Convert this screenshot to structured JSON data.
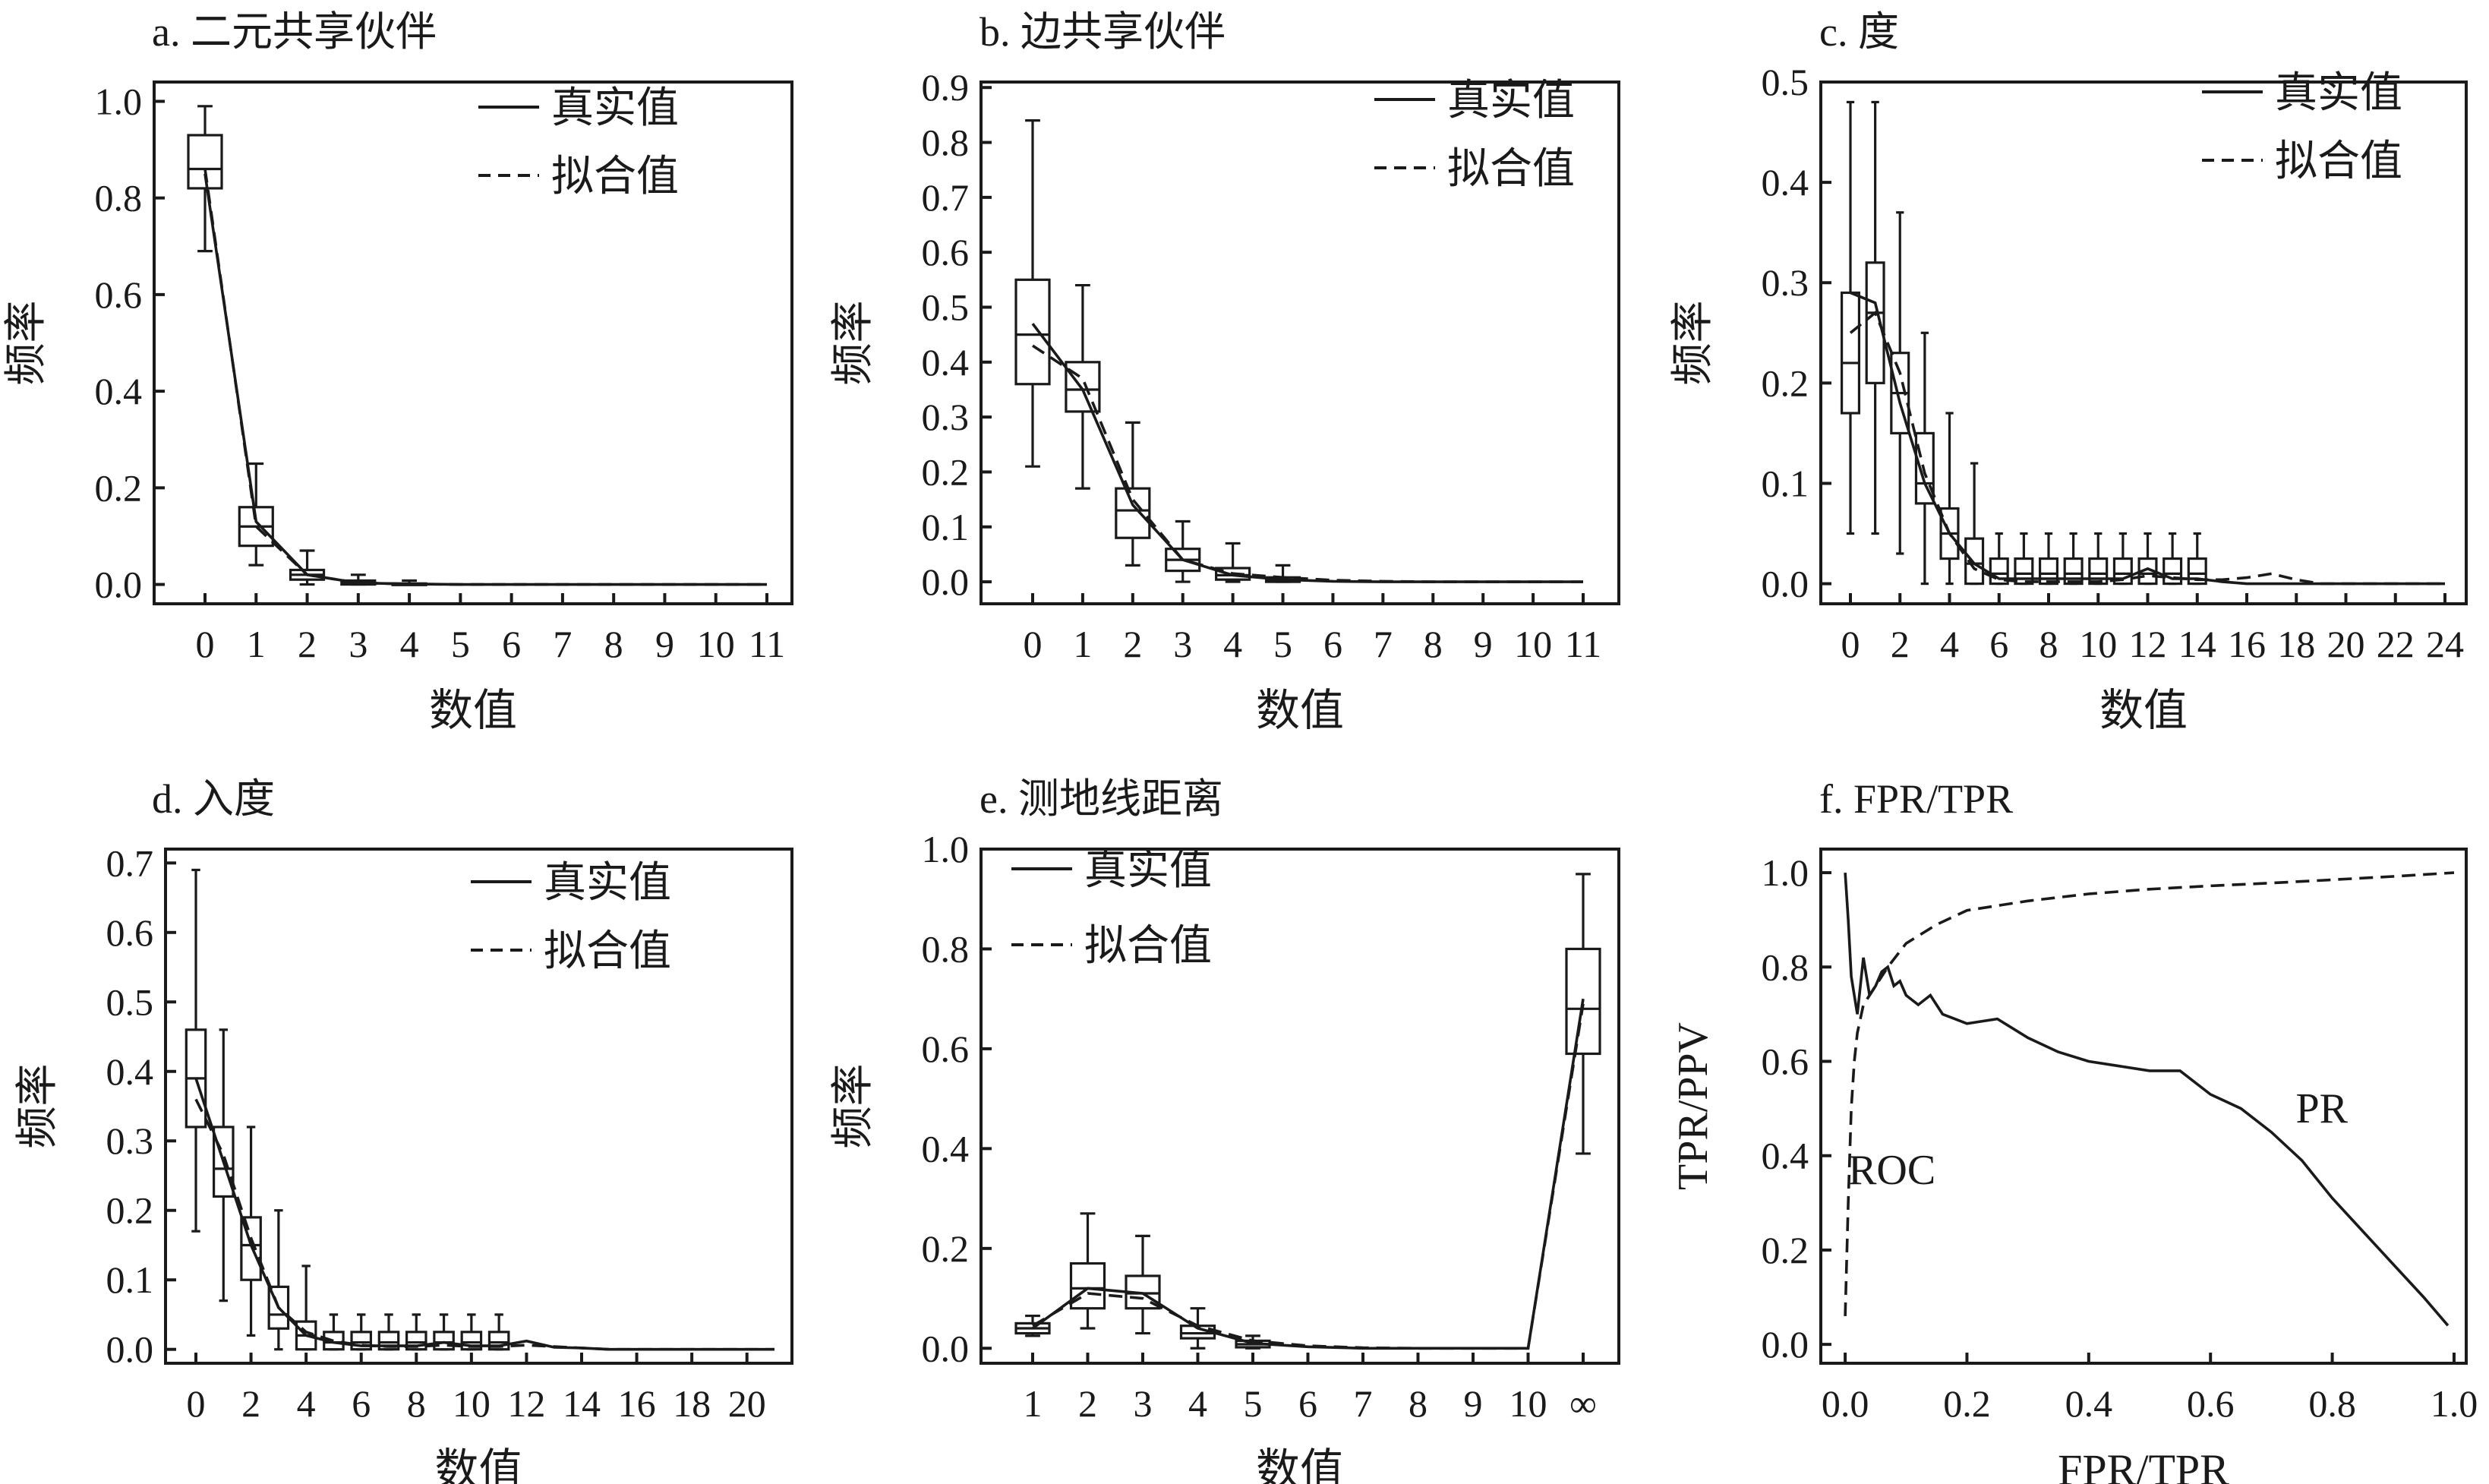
{
  "legend": {
    "real": "真实值",
    "fit": "拟合值"
  },
  "chart_data": [
    {
      "id": "a",
      "type": "box",
      "title": "a. 二元共享伙伴",
      "xlabel": "数值",
      "ylabel": "频率",
      "categories": [
        "0",
        "1",
        "2",
        "3",
        "4",
        "5",
        "6",
        "7",
        "8",
        "9",
        "10",
        "11"
      ],
      "yticks": [
        "0.0",
        "0.2",
        "0.4",
        "0.6",
        "0.8",
        "1.0"
      ],
      "ylim": [
        -0.04,
        1.04
      ],
      "boxes": [
        {
          "x": 0,
          "min": 0.69,
          "q1": 0.82,
          "median": 0.86,
          "q3": 0.93,
          "max": 0.99
        },
        {
          "x": 1,
          "min": 0.04,
          "q1": 0.08,
          "median": 0.12,
          "q3": 0.16,
          "max": 0.25
        },
        {
          "x": 2,
          "min": 0.0,
          "q1": 0.01,
          "median": 0.02,
          "q3": 0.03,
          "max": 0.07
        },
        {
          "x": 3,
          "min": 0.0,
          "q1": 0.0,
          "median": 0.004,
          "q3": 0.008,
          "max": 0.02
        },
        {
          "x": 4,
          "min": 0.0,
          "q1": 0.0,
          "median": 0.0,
          "q3": 0.002,
          "max": 0.008
        }
      ],
      "series": [
        {
          "name": "真实值",
          "x": [
            0,
            1,
            2,
            3,
            4,
            5,
            6,
            7,
            8,
            9,
            10,
            11
          ],
          "values": [
            0.85,
            0.13,
            0.02,
            0.003,
            0.001,
            0,
            0,
            0,
            0,
            0,
            0,
            0
          ]
        },
        {
          "name": "拟合值",
          "x": [
            0,
            1,
            2,
            3,
            4,
            5,
            6,
            7,
            8,
            9,
            10,
            11
          ],
          "values": [
            0.86,
            0.12,
            0.02,
            0.003,
            0.001,
            0,
            0,
            0,
            0,
            0,
            0,
            0
          ]
        }
      ],
      "legend_position": "top-right"
    },
    {
      "id": "b",
      "type": "box",
      "title": "b. 边共享伙伴",
      "xlabel": "数值",
      "ylabel": "频率",
      "categories": [
        "0",
        "1",
        "2",
        "3",
        "4",
        "5",
        "6",
        "7",
        "8",
        "9",
        "10",
        "11"
      ],
      "yticks": [
        "0.0",
        "0.1",
        "0.2",
        "0.3",
        "0.4",
        "0.5",
        "0.6",
        "0.7",
        "0.8",
        "0.9"
      ],
      "ylim": [
        -0.04,
        0.91
      ],
      "boxes": [
        {
          "x": 0,
          "min": 0.21,
          "q1": 0.36,
          "median": 0.45,
          "q3": 0.55,
          "max": 0.84
        },
        {
          "x": 1,
          "min": 0.17,
          "q1": 0.31,
          "median": 0.35,
          "q3": 0.4,
          "max": 0.54
        },
        {
          "x": 2,
          "min": 0.03,
          "q1": 0.08,
          "median": 0.13,
          "q3": 0.17,
          "max": 0.29
        },
        {
          "x": 3,
          "min": 0.0,
          "q1": 0.02,
          "median": 0.04,
          "q3": 0.06,
          "max": 0.11
        },
        {
          "x": 4,
          "min": 0.0,
          "q1": 0.004,
          "median": 0.012,
          "q3": 0.025,
          "max": 0.07
        },
        {
          "x": 5,
          "min": 0.0,
          "q1": 0.0,
          "median": 0.003,
          "q3": 0.008,
          "max": 0.03
        }
      ],
      "series": [
        {
          "name": "真实值",
          "x": [
            0,
            1,
            2,
            3,
            4,
            5,
            6,
            7,
            8,
            9,
            10,
            11
          ],
          "values": [
            0.47,
            0.35,
            0.14,
            0.04,
            0.012,
            0.004,
            0.001,
            0,
            0,
            0,
            0,
            0
          ]
        },
        {
          "name": "拟合值",
          "x": [
            0,
            1,
            2,
            3,
            4,
            5,
            6,
            7,
            8,
            9,
            10,
            11
          ],
          "values": [
            0.43,
            0.37,
            0.15,
            0.04,
            0.015,
            0.008,
            0.003,
            0.001,
            0,
            0,
            0,
            0
          ]
        }
      ],
      "legend_position": "top-right"
    },
    {
      "id": "c",
      "type": "box",
      "title": "c. 度",
      "xlabel": "数值",
      "ylabel": "频率",
      "categories": [
        "0",
        "1",
        "2",
        "3",
        "4",
        "5",
        "6",
        "7",
        "8",
        "9",
        "10",
        "11",
        "12",
        "13",
        "14",
        "15",
        "16",
        "17",
        "18",
        "19",
        "20",
        "21",
        "22",
        "23",
        "24"
      ],
      "tick_labels": [
        "0",
        "2",
        "4",
        "6",
        "8",
        "10",
        "12",
        "14",
        "16",
        "18",
        "20",
        "22",
        "24"
      ],
      "yticks": [
        "0.0",
        "0.1",
        "0.2",
        "0.3",
        "0.4",
        "0.5"
      ],
      "ylim": [
        -0.02,
        0.5
      ],
      "boxes": [
        {
          "x": 0,
          "min": 0.05,
          "q1": 0.17,
          "median": 0.22,
          "q3": 0.29,
          "max": 0.48
        },
        {
          "x": 1,
          "min": 0.05,
          "q1": 0.2,
          "median": 0.27,
          "q3": 0.32,
          "max": 0.48
        },
        {
          "x": 2,
          "min": 0.03,
          "q1": 0.15,
          "median": 0.19,
          "q3": 0.23,
          "max": 0.37
        },
        {
          "x": 3,
          "min": 0.0,
          "q1": 0.08,
          "median": 0.1,
          "q3": 0.15,
          "max": 0.25
        },
        {
          "x": 4,
          "min": 0.0,
          "q1": 0.025,
          "median": 0.05,
          "q3": 0.075,
          "max": 0.17
        },
        {
          "x": 5,
          "min": 0.0,
          "q1": 0.0,
          "median": 0.02,
          "q3": 0.045,
          "max": 0.12
        },
        {
          "x": 6,
          "min": 0.0,
          "q1": 0.0,
          "median": 0.01,
          "q3": 0.025,
          "max": 0.05
        },
        {
          "x": 7,
          "min": 0.0,
          "q1": 0.0,
          "median": 0.01,
          "q3": 0.025,
          "max": 0.05
        },
        {
          "x": 8,
          "min": 0.0,
          "q1": 0.0,
          "median": 0.01,
          "q3": 0.025,
          "max": 0.05
        },
        {
          "x": 9,
          "min": 0.0,
          "q1": 0.0,
          "median": 0.01,
          "q3": 0.025,
          "max": 0.05
        },
        {
          "x": 10,
          "min": 0.0,
          "q1": 0.0,
          "median": 0.01,
          "q3": 0.025,
          "max": 0.05
        },
        {
          "x": 11,
          "min": 0.0,
          "q1": 0.0,
          "median": 0.01,
          "q3": 0.025,
          "max": 0.05
        },
        {
          "x": 12,
          "min": 0.0,
          "q1": 0.0,
          "median": 0.01,
          "q3": 0.025,
          "max": 0.05
        },
        {
          "x": 13,
          "min": 0.0,
          "q1": 0.0,
          "median": 0.01,
          "q3": 0.025,
          "max": 0.05
        },
        {
          "x": 14,
          "min": 0.0,
          "q1": 0.0,
          "median": 0.01,
          "q3": 0.025,
          "max": 0.05
        }
      ],
      "series": [
        {
          "name": "真实值",
          "x": [
            0,
            1,
            2,
            3,
            4,
            5,
            6,
            7,
            8,
            9,
            10,
            11,
            12,
            13,
            14,
            15,
            16,
            17,
            18,
            19,
            20,
            21,
            22,
            23,
            24
          ],
          "values": [
            0.29,
            0.28,
            0.18,
            0.1,
            0.05,
            0.02,
            0.005,
            0.005,
            0.005,
            0.005,
            0.005,
            0.005,
            0.015,
            0.005,
            0.005,
            0.002,
            0,
            0,
            0,
            0,
            0,
            0,
            0,
            0,
            0
          ]
        },
        {
          "name": "拟合值",
          "x": [
            0,
            1,
            2,
            3,
            4,
            5,
            6,
            7,
            8,
            9,
            10,
            11,
            12,
            13,
            14,
            15,
            16,
            17,
            18,
            19,
            20,
            21,
            22,
            23,
            24
          ],
          "values": [
            0.25,
            0.27,
            0.21,
            0.11,
            0.05,
            0.015,
            0.004,
            0.002,
            0.002,
            0.002,
            0.002,
            0.004,
            0.008,
            0.006,
            0.004,
            0.004,
            0.006,
            0.01,
            0.004,
            0,
            0,
            0,
            0,
            0,
            0
          ]
        }
      ],
      "legend_position": "top-right"
    },
    {
      "id": "d",
      "type": "box",
      "title": "d. 入度",
      "xlabel": "数值",
      "ylabel": "频率",
      "categories": [
        "0",
        "1",
        "2",
        "3",
        "4",
        "5",
        "6",
        "7",
        "8",
        "9",
        "10",
        "11",
        "12",
        "13",
        "14",
        "15",
        "16",
        "17",
        "18",
        "19",
        "20",
        "21"
      ],
      "tick_labels": [
        "0",
        "2",
        "4",
        "6",
        "8",
        "10",
        "12",
        "14",
        "16",
        "18",
        "20"
      ],
      "yticks": [
        "0.0",
        "0.1",
        "0.2",
        "0.3",
        "0.4",
        "0.5",
        "0.6",
        "0.7"
      ],
      "ylim": [
        -0.02,
        0.72
      ],
      "boxes": [
        {
          "x": 0,
          "min": 0.17,
          "q1": 0.32,
          "median": 0.39,
          "q3": 0.46,
          "max": 0.69
        },
        {
          "x": 1,
          "min": 0.07,
          "q1": 0.22,
          "median": 0.26,
          "q3": 0.32,
          "max": 0.46
        },
        {
          "x": 2,
          "min": 0.02,
          "q1": 0.1,
          "median": 0.15,
          "q3": 0.19,
          "max": 0.32
        },
        {
          "x": 3,
          "min": 0.0,
          "q1": 0.03,
          "median": 0.05,
          "q3": 0.09,
          "max": 0.2
        },
        {
          "x": 4,
          "min": 0.0,
          "q1": 0.0,
          "median": 0.02,
          "q3": 0.04,
          "max": 0.12
        },
        {
          "x": 5,
          "min": 0.0,
          "q1": 0.0,
          "median": 0.01,
          "q3": 0.025,
          "max": 0.05
        },
        {
          "x": 6,
          "min": 0.0,
          "q1": 0.0,
          "median": 0.01,
          "q3": 0.025,
          "max": 0.05
        },
        {
          "x": 7,
          "min": 0.0,
          "q1": 0.0,
          "median": 0.01,
          "q3": 0.025,
          "max": 0.05
        },
        {
          "x": 8,
          "min": 0.0,
          "q1": 0.0,
          "median": 0.01,
          "q3": 0.025,
          "max": 0.05
        },
        {
          "x": 9,
          "min": 0.0,
          "q1": 0.0,
          "median": 0.01,
          "q3": 0.025,
          "max": 0.05
        },
        {
          "x": 10,
          "min": 0.0,
          "q1": 0.0,
          "median": 0.01,
          "q3": 0.025,
          "max": 0.05
        },
        {
          "x": 11,
          "min": 0.0,
          "q1": 0.0,
          "median": 0.01,
          "q3": 0.025,
          "max": 0.05
        }
      ],
      "series": [
        {
          "name": "真实值",
          "x": [
            0,
            1,
            2,
            3,
            4,
            5,
            6,
            7,
            8,
            9,
            10,
            11,
            12,
            13,
            14,
            15,
            16,
            17,
            18,
            19,
            20,
            21
          ],
          "values": [
            0.39,
            0.27,
            0.15,
            0.06,
            0.02,
            0.01,
            0.005,
            0.005,
            0.005,
            0.01,
            0.005,
            0.005,
            0.012,
            0.003,
            0.002,
            0,
            0,
            0,
            0,
            0,
            0,
            0
          ]
        },
        {
          "name": "拟合值",
          "x": [
            0,
            1,
            2,
            3,
            4,
            5,
            6,
            7,
            8,
            9,
            10,
            11,
            12,
            13,
            14,
            15,
            16,
            17,
            18,
            19,
            20,
            21
          ],
          "values": [
            0.36,
            0.28,
            0.16,
            0.06,
            0.025,
            0.012,
            0.006,
            0.004,
            0.004,
            0.006,
            0.004,
            0.004,
            0.006,
            0.004,
            0.002,
            0,
            0,
            0,
            0,
            0,
            0,
            0
          ]
        }
      ],
      "legend_position": "top-right"
    },
    {
      "id": "e",
      "type": "box",
      "title": "e. 测地线距离",
      "xlabel": "数值",
      "ylabel": "频率",
      "categories": [
        "1",
        "2",
        "3",
        "4",
        "5",
        "6",
        "7",
        "8",
        "9",
        "10",
        "∞"
      ],
      "yticks": [
        "0.0",
        "0.2",
        "0.4",
        "0.6",
        "0.8",
        "1.0"
      ],
      "ylim": [
        -0.03,
        1.0
      ],
      "boxes": [
        {
          "x": 0,
          "min": 0.025,
          "q1": 0.03,
          "median": 0.04,
          "q3": 0.05,
          "max": 0.065
        },
        {
          "x": 1,
          "min": 0.04,
          "q1": 0.08,
          "median": 0.12,
          "q3": 0.17,
          "max": 0.27
        },
        {
          "x": 2,
          "min": 0.03,
          "q1": 0.08,
          "median": 0.11,
          "q3": 0.145,
          "max": 0.225
        },
        {
          "x": 3,
          "min": 0.0,
          "q1": 0.02,
          "median": 0.03,
          "q3": 0.045,
          "max": 0.08
        },
        {
          "x": 4,
          "min": 0.0,
          "q1": 0.002,
          "median": 0.008,
          "q3": 0.015,
          "max": 0.025
        },
        {
          "x": 10,
          "min": 0.39,
          "q1": 0.59,
          "median": 0.68,
          "q3": 0.8,
          "max": 0.95
        }
      ],
      "series": [
        {
          "name": "真实值",
          "x": [
            0,
            1,
            2,
            3,
            4,
            5,
            6,
            7,
            8,
            9,
            10
          ],
          "values": [
            0.04,
            0.12,
            0.11,
            0.04,
            0.01,
            0.003,
            0,
            0,
            0,
            0,
            0.7
          ]
        },
        {
          "name": "拟合值",
          "x": [
            0,
            1,
            2,
            3,
            4,
            5,
            6,
            7,
            8,
            9,
            10
          ],
          "values": [
            0.045,
            0.11,
            0.1,
            0.045,
            0.015,
            0.005,
            0.001,
            0,
            0,
            0,
            0.69
          ]
        }
      ],
      "legend_position": "top-left"
    },
    {
      "id": "f",
      "type": "line",
      "title": "f. FPR/TPR",
      "xlabel": "FPR/TPR",
      "ylabel": "TPR/PPV",
      "xticks": [
        "0.0",
        "0.2",
        "0.4",
        "0.6",
        "0.8",
        "1.0"
      ],
      "yticks": [
        "0.0",
        "0.2",
        "0.4",
        "0.6",
        "0.8",
        "1.0"
      ],
      "xlim": [
        -0.04,
        1.02
      ],
      "ylim": [
        -0.04,
        1.05
      ],
      "series": [
        {
          "name": "PR",
          "x": [
            0.0,
            0.005,
            0.01,
            0.02,
            0.03,
            0.04,
            0.05,
            0.06,
            0.07,
            0.08,
            0.09,
            0.1,
            0.12,
            0.14,
            0.16,
            0.18,
            0.2,
            0.25,
            0.3,
            0.35,
            0.4,
            0.45,
            0.5,
            0.55,
            0.6,
            0.65,
            0.7,
            0.75,
            0.8,
            0.85,
            0.9,
            0.95,
            0.99
          ],
          "y": [
            1.0,
            0.9,
            0.78,
            0.7,
            0.82,
            0.74,
            0.76,
            0.79,
            0.8,
            0.76,
            0.77,
            0.74,
            0.72,
            0.74,
            0.7,
            0.69,
            0.68,
            0.69,
            0.65,
            0.62,
            0.6,
            0.59,
            0.58,
            0.58,
            0.53,
            0.5,
            0.45,
            0.39,
            0.31,
            0.24,
            0.17,
            0.1,
            0.04
          ]
        },
        {
          "name": "ROC",
          "x": [
            0.0,
            0.005,
            0.01,
            0.015,
            0.02,
            0.03,
            0.05,
            0.07,
            0.1,
            0.15,
            0.2,
            0.3,
            0.4,
            0.5,
            0.6,
            0.7,
            0.8,
            0.9,
            1.0
          ],
          "y": [
            0.06,
            0.3,
            0.5,
            0.6,
            0.66,
            0.72,
            0.76,
            0.8,
            0.85,
            0.89,
            0.92,
            0.94,
            0.955,
            0.965,
            0.972,
            0.978,
            0.985,
            0.992,
            1.0
          ]
        }
      ],
      "annotations": [
        "ROC",
        "PR"
      ]
    }
  ]
}
